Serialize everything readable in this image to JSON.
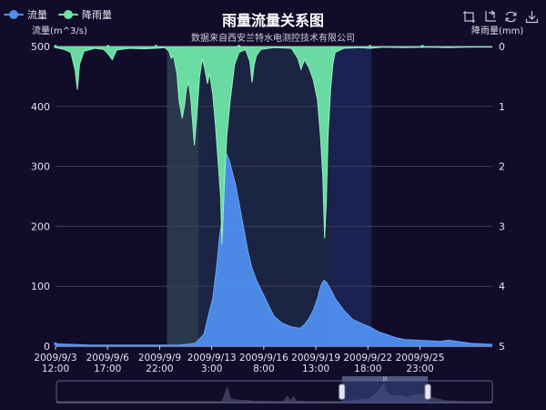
{
  "title": "雨量流量关系图",
  "subtitle": "数据来自西安兰特水电测控技术有限公司",
  "legend": [
    {
      "label": "流量",
      "color": "#4f8ff0"
    },
    {
      "label": "降雨量",
      "color": "#6ee6a8"
    }
  ],
  "toolbox": [
    {
      "name": "zoom-icon"
    },
    {
      "name": "zoom-reset-icon"
    },
    {
      "name": "restore-icon"
    },
    {
      "name": "save-image-icon"
    }
  ],
  "colors": {
    "background": "#100c2a",
    "flow": "#4f8ff0",
    "rain": "#6ee6a8",
    "highlight_band": "#2c3e4f",
    "slider_window": "#3b4e8a"
  },
  "chart_data": {
    "type": "area",
    "ylabel_left": "流量(m^3/s)",
    "ylabel_right": "降雨量(mm)",
    "ylim_left": [
      0,
      500
    ],
    "yticks_left": [
      "0",
      "100",
      "200",
      "300",
      "400",
      "500"
    ],
    "ylim_right": [
      0,
      5
    ],
    "yticks_right": [
      "0",
      "1",
      "2",
      "3",
      "4",
      "5"
    ],
    "right_axis_inverted": true,
    "x_ticks": [
      {
        "line1": "2009/9/3",
        "line2": "12:00",
        "t": 0
      },
      {
        "line1": "2009/9/6",
        "line2": "17:00",
        "t": 0.1192
      },
      {
        "line1": "2009/9/9",
        "line2": "22:00",
        "t": 0.2384
      },
      {
        "line1": "2009/9/13",
        "line2": "3:00",
        "t": 0.3576
      },
      {
        "line1": "2009/9/16",
        "line2": "8:00",
        "t": 0.4768
      },
      {
        "line1": "2009/9/19",
        "line2": "13:00",
        "t": 0.596
      },
      {
        "line1": "2009/9/22",
        "line2": "18:00",
        "t": 0.7152
      },
      {
        "line1": "2009/9/25",
        "line2": "23:00",
        "t": 0.8344
      }
    ],
    "mark_areas": [
      {
        "from_t": 0.2551,
        "to_t": 0.3278,
        "color": "#2c3e4f"
      },
      {
        "from_t": 0.3278,
        "to_t": 0.6304,
        "color": "#1d2745"
      },
      {
        "from_t": 0.6304,
        "to_t": 0.7235,
        "color": "#1c2556"
      }
    ],
    "series": [
      {
        "name": "流量",
        "axis": "left",
        "color": "#4f8ff0",
        "points": [
          [
            0,
            4
          ],
          [
            0.04,
            3
          ],
          [
            0.08,
            2
          ],
          [
            0.12,
            2
          ],
          [
            0.16,
            2
          ],
          [
            0.2,
            2
          ],
          [
            0.24,
            2
          ],
          [
            0.26,
            2
          ],
          [
            0.28,
            2
          ],
          [
            0.3,
            3
          ],
          [
            0.32,
            5
          ],
          [
            0.34,
            20
          ],
          [
            0.348,
            45
          ],
          [
            0.353,
            60
          ],
          [
            0.36,
            80
          ],
          [
            0.37,
            140
          ],
          [
            0.375,
            180
          ],
          [
            0.381,
            210
          ],
          [
            0.384,
            260
          ],
          [
            0.388,
            310
          ],
          [
            0.392,
            320
          ],
          [
            0.398,
            310
          ],
          [
            0.405,
            290
          ],
          [
            0.412,
            270
          ],
          [
            0.42,
            240
          ],
          [
            0.43,
            200
          ],
          [
            0.44,
            160
          ],
          [
            0.45,
            130
          ],
          [
            0.46,
            110
          ],
          [
            0.47,
            95
          ],
          [
            0.48,
            80
          ],
          [
            0.49,
            65
          ],
          [
            0.5,
            50
          ],
          [
            0.52,
            38
          ],
          [
            0.54,
            32
          ],
          [
            0.56,
            30
          ],
          [
            0.57,
            36
          ],
          [
            0.58,
            46
          ],
          [
            0.59,
            60
          ],
          [
            0.6,
            80
          ],
          [
            0.605,
            95
          ],
          [
            0.61,
            105
          ],
          [
            0.615,
            110
          ],
          [
            0.62,
            107
          ],
          [
            0.63,
            95
          ],
          [
            0.64,
            80
          ],
          [
            0.66,
            60
          ],
          [
            0.68,
            45
          ],
          [
            0.7,
            38
          ],
          [
            0.72,
            32
          ],
          [
            0.74,
            24
          ],
          [
            0.76,
            19
          ],
          [
            0.78,
            14
          ],
          [
            0.8,
            11
          ],
          [
            0.83,
            10
          ],
          [
            0.86,
            9
          ],
          [
            0.88,
            8
          ],
          [
            0.9,
            10
          ],
          [
            0.92,
            8
          ],
          [
            0.95,
            5
          ],
          [
            1.0,
            3
          ]
        ]
      },
      {
        "name": "降雨量",
        "axis": "right",
        "color": "#6ee6a8",
        "points": [
          [
            0,
            0.02
          ],
          [
            0.02,
            0.05
          ],
          [
            0.035,
            0.1
          ],
          [
            0.045,
            0.4
          ],
          [
            0.05,
            0.72
          ],
          [
            0.055,
            0.3
          ],
          [
            0.065,
            0.08
          ],
          [
            0.09,
            0.03
          ],
          [
            0.11,
            0.05
          ],
          [
            0.12,
            0.12
          ],
          [
            0.13,
            0.22
          ],
          [
            0.14,
            0.06
          ],
          [
            0.17,
            0.03
          ],
          [
            0.2,
            0.04
          ],
          [
            0.23,
            0.03
          ],
          [
            0.25,
            0.02
          ],
          [
            0.26,
            0.08
          ],
          [
            0.265,
            0.2
          ],
          [
            0.27,
            0.15
          ],
          [
            0.278,
            0.45
          ],
          [
            0.283,
            0.9
          ],
          [
            0.29,
            1.2
          ],
          [
            0.295,
            1.0
          ],
          [
            0.3,
            0.7
          ],
          [
            0.305,
            0.6
          ],
          [
            0.31,
            0.9
          ],
          [
            0.318,
            1.65
          ],
          [
            0.323,
            1.2
          ],
          [
            0.33,
            0.5
          ],
          [
            0.336,
            0.2
          ],
          [
            0.341,
            0.35
          ],
          [
            0.348,
            0.62
          ],
          [
            0.353,
            0.45
          ],
          [
            0.36,
            0.8
          ],
          [
            0.366,
            1.3
          ],
          [
            0.372,
            1.9
          ],
          [
            0.378,
            2.5
          ],
          [
            0.381,
            3.3
          ],
          [
            0.386,
            2.4
          ],
          [
            0.392,
            1.5
          ],
          [
            0.4,
            0.9
          ],
          [
            0.41,
            0.3
          ],
          [
            0.42,
            0.1
          ],
          [
            0.435,
            0.05
          ],
          [
            0.445,
            0.25
          ],
          [
            0.45,
            0.6
          ],
          [
            0.455,
            0.3
          ],
          [
            0.46,
            0.15
          ],
          [
            0.47,
            0.05
          ],
          [
            0.5,
            0.02
          ],
          [
            0.54,
            0.03
          ],
          [
            0.555,
            0.2
          ],
          [
            0.562,
            0.38
          ],
          [
            0.57,
            0.22
          ],
          [
            0.58,
            0.35
          ],
          [
            0.59,
            0.55
          ],
          [
            0.6,
            0.9
          ],
          [
            0.607,
            1.55
          ],
          [
            0.612,
            2.2
          ],
          [
            0.616,
            3.2
          ],
          [
            0.62,
            2.6
          ],
          [
            0.624,
            1.5
          ],
          [
            0.63,
            0.7
          ],
          [
            0.635,
            0.3
          ],
          [
            0.64,
            0.1
          ],
          [
            0.66,
            0.03
          ],
          [
            0.7,
            0.02
          ],
          [
            0.72,
            0.03
          ],
          [
            0.75,
            0.01
          ],
          [
            0.8,
            0.02
          ],
          [
            0.85,
            0.01
          ],
          [
            0.9,
            0.02
          ],
          [
            0.95,
            0.01
          ],
          [
            1.0,
            0.01
          ]
        ]
      }
    ],
    "rain_markers_t": [
      0.0,
      0.12,
      0.23,
      0.42,
      0.72,
      0.84
    ],
    "datazoom": {
      "start_percent": 65.5,
      "end_percent": 85.2,
      "overview_points": [
        [
          0,
          0.05
        ],
        [
          0.38,
          0.05
        ],
        [
          0.392,
          0.7
        ],
        [
          0.4,
          0.15
        ],
        [
          0.45,
          0.08
        ],
        [
          0.52,
          0.05
        ],
        [
          0.53,
          0.3
        ],
        [
          0.535,
          0.1
        ],
        [
          0.545,
          0.25
        ],
        [
          0.55,
          0.08
        ],
        [
          0.58,
          0.06
        ],
        [
          0.6,
          0.05
        ],
        [
          0.65,
          0.05
        ],
        [
          0.68,
          0.1
        ],
        [
          0.7,
          0.15
        ],
        [
          0.72,
          0.2
        ],
        [
          0.74,
          0.55
        ],
        [
          0.75,
          0.85
        ],
        [
          0.758,
          0.5
        ],
        [
          0.77,
          0.3
        ],
        [
          0.785,
          0.35
        ],
        [
          0.8,
          0.25
        ],
        [
          0.82,
          0.35
        ],
        [
          0.84,
          0.4
        ],
        [
          0.86,
          0.25
        ],
        [
          0.89,
          0.1
        ],
        [
          0.93,
          0.06
        ],
        [
          1.0,
          0.05
        ]
      ]
    }
  }
}
